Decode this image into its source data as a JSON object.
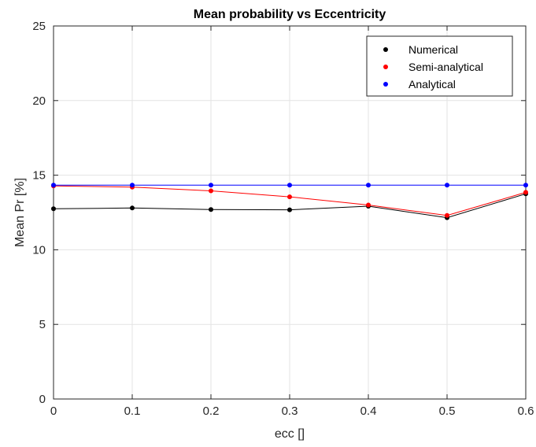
{
  "chart_data": {
    "type": "line",
    "title": "Mean probability vs Eccentricity",
    "xlabel": "ecc []",
    "ylabel": "Mean Pr [%]",
    "xlim": [
      0,
      0.6
    ],
    "ylim": [
      0,
      25
    ],
    "xticks": [
      "0",
      "0.1",
      "0.2",
      "0.3",
      "0.4",
      "0.5",
      "0.6"
    ],
    "yticks": [
      "0",
      "5",
      "10",
      "15",
      "20",
      "25"
    ],
    "grid": true,
    "legend_position": "top-right",
    "x": [
      0,
      0.1,
      0.2,
      0.3,
      0.4,
      0.5,
      0.6
    ],
    "series": [
      {
        "name": "Numerical",
        "color": "#000000",
        "values": [
          12.75,
          12.8,
          12.7,
          12.68,
          12.92,
          12.15,
          13.75
        ]
      },
      {
        "name": "Semi-analytical",
        "color": "#ff0000",
        "values": [
          14.28,
          14.2,
          13.95,
          13.55,
          13.0,
          12.3,
          13.85
        ]
      },
      {
        "name": "Analytical",
        "color": "#0000ff",
        "values": [
          14.33,
          14.33,
          14.33,
          14.33,
          14.33,
          14.33,
          14.33
        ]
      }
    ]
  }
}
